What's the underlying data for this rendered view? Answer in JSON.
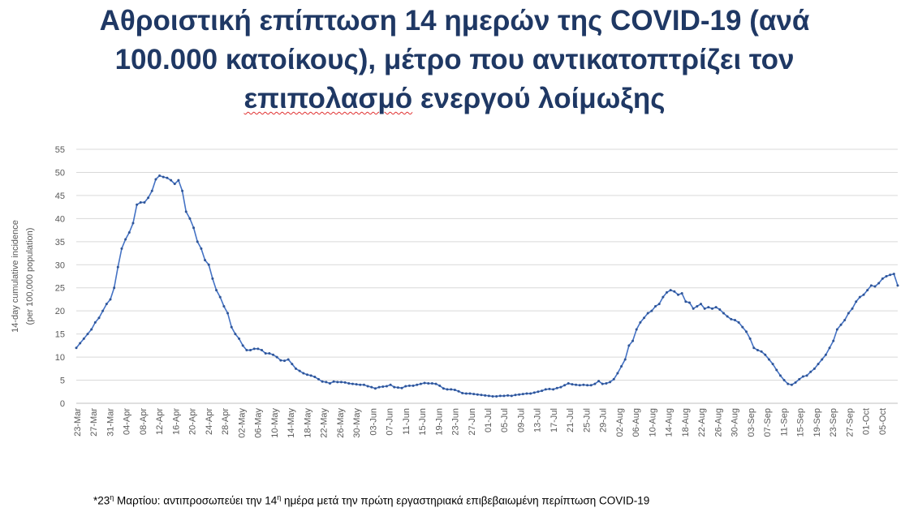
{
  "title": {
    "line1": "Αθροιστική επίπτωση 14 ημερών της COVID-19 (ανά",
    "line2": "100.000 κατοίκους), μέτρο που αντικατοπτρίζει τον",
    "line3_word": "επιπολασμό",
    "line3_rest": " ενεργού λοίμωξης"
  },
  "footnote": {
    "prefix": "*23",
    "sup1": "η",
    "middle": " Μαρτίου: αντιπροσωπεύει την 14",
    "sup2": "η",
    "suffix": " ημέρα μετά την πρώτη εργαστηριακά επιβεβαιωμένη περίπτωση COVID-19"
  },
  "chart_data": {
    "type": "line",
    "ylabel_line1": "14-day cumulative incidence",
    "ylabel_line2": "(per 100,000 population)",
    "xlabel": "",
    "ylim": [
      0,
      55
    ],
    "yticks": [
      0,
      5,
      10,
      15,
      20,
      25,
      30,
      35,
      40,
      45,
      50,
      55
    ],
    "grid": true,
    "line_color": "#4472c4",
    "grid_color": "#d9d9d9",
    "x_tick_labels": [
      "23-Mar",
      "27-Mar",
      "31-Mar",
      "04-Apr",
      "08-Apr",
      "12-Apr",
      "16-Apr",
      "20-Apr",
      "24-Apr",
      "28-Apr",
      "02-May",
      "06-May",
      "10-May",
      "14-May",
      "18-May",
      "22-May",
      "26-May",
      "30-May",
      "03-Jun",
      "07-Jun",
      "11-Jun",
      "15-Jun",
      "19-Jun",
      "23-Jun",
      "27-Jun",
      "01-Jul",
      "05-Jul",
      "09-Jul",
      "13-Jul",
      "17-Jul",
      "21-Jul",
      "25-Jul",
      "29-Jul",
      "02-Aug",
      "06-Aug",
      "10-Aug",
      "14-Aug",
      "18-Aug",
      "22-Aug",
      "26-Aug",
      "30-Aug",
      "03-Sep",
      "07-Sep",
      "11-Sep",
      "15-Sep",
      "19-Sep",
      "23-Sep",
      "27-Sep",
      "01-Oct",
      "05-Oct"
    ],
    "series": [
      {
        "values": [
          12,
          13,
          14,
          15,
          16,
          17.5,
          18.5,
          20,
          21.5,
          22.5,
          25,
          29.5,
          33.5,
          35.5,
          37,
          39,
          43,
          43.5,
          43.5,
          44.5,
          46,
          48.5,
          49.3,
          49,
          48.8,
          48.3,
          47.5,
          48.3,
          46,
          41.5,
          40,
          38,
          35,
          33.5,
          31,
          30,
          27,
          24.5,
          23,
          21,
          19.5,
          16.5,
          15,
          14,
          12.5,
          11.5,
          11.5,
          11.8,
          11.8,
          11.5,
          10.8,
          10.8,
          10.5,
          10,
          9.3,
          9.2,
          9.5,
          8.5,
          7.5,
          7,
          6.5,
          6.2,
          6,
          5.7,
          5.2,
          4.7,
          4.6,
          4.3,
          4.7,
          4.6,
          4.6,
          4.5,
          4.3,
          4.2,
          4.1,
          4,
          4,
          3.7,
          3.5,
          3.2,
          3.5,
          3.6,
          3.7,
          4,
          3.5,
          3.4,
          3.3,
          3.7,
          3.8,
          3.8,
          4,
          4.2,
          4.4,
          4.3,
          4.3,
          4.2,
          3.8,
          3.2,
          3,
          3,
          2.9,
          2.6,
          2.2,
          2.1,
          2.1,
          2,
          1.9,
          1.8,
          1.7,
          1.6,
          1.5,
          1.5,
          1.6,
          1.6,
          1.7,
          1.6,
          1.8,
          1.9,
          2,
          2.1,
          2.1,
          2.3,
          2.5,
          2.7,
          3,
          3.1,
          3,
          3.3,
          3.5,
          3.9,
          4.3,
          4.1,
          4,
          3.9,
          4,
          3.9,
          3.9,
          4.2,
          4.8,
          4.2,
          4.3,
          4.6,
          5.2,
          6.5,
          8,
          9.5,
          12.5,
          13.5,
          16,
          17.5,
          18.5,
          19.5,
          20,
          21,
          21.5,
          23,
          24,
          24.5,
          24.2,
          23.5,
          23.8,
          22,
          21.8,
          20.5,
          21,
          21.5,
          20.5,
          20.8,
          20.5,
          20.8,
          20.3,
          19.5,
          18.8,
          18.2,
          18,
          17.5,
          16.5,
          15.5,
          14,
          12,
          11.5,
          11.2,
          10.5,
          9.5,
          8.5,
          7.2,
          6,
          5,
          4.2,
          4,
          4.5,
          5.2,
          5.8,
          6,
          6.8,
          7.5,
          8.5,
          9.5,
          10.5,
          12,
          13.5,
          16,
          17,
          18,
          19.5,
          20.5,
          22,
          23,
          23.5,
          24.5,
          25.5,
          25.3,
          26,
          27,
          27.5,
          27.8,
          28,
          25.5
        ]
      }
    ]
  }
}
